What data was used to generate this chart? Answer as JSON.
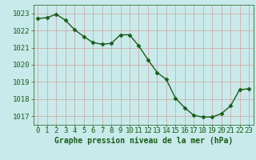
{
  "x": [
    0,
    1,
    2,
    3,
    4,
    5,
    6,
    7,
    8,
    9,
    10,
    11,
    12,
    13,
    14,
    15,
    16,
    17,
    18,
    19,
    20,
    21,
    22,
    23
  ],
  "y": [
    1022.7,
    1022.75,
    1022.95,
    1022.6,
    1022.05,
    1021.65,
    1021.3,
    1021.2,
    1021.25,
    1021.75,
    1021.75,
    1021.1,
    1020.3,
    1019.55,
    1019.15,
    1018.05,
    1017.5,
    1017.05,
    1016.95,
    1016.95,
    1017.15,
    1017.6,
    1018.55,
    1018.6
  ],
  "line_color": "#1a5c1a",
  "marker": "D",
  "marker_size": 2.5,
  "bg_color": "#c8eaea",
  "grid_color": "#d4a0a0",
  "xlabel": "Graphe pression niveau de la mer (hPa)",
  "xlabel_color": "#1a5c1a",
  "tick_color": "#1a5c1a",
  "ylim_low": 1016.5,
  "ylim_high": 1023.5,
  "yticks": [
    1017,
    1018,
    1019,
    1020,
    1021,
    1022,
    1023
  ],
  "xticks": [
    0,
    1,
    2,
    3,
    4,
    5,
    6,
    7,
    8,
    9,
    10,
    11,
    12,
    13,
    14,
    15,
    16,
    17,
    18,
    19,
    20,
    21,
    22,
    23
  ],
  "line_width": 1.0,
  "tick_fontsize": 6.5,
  "xlabel_fontsize": 7.0
}
